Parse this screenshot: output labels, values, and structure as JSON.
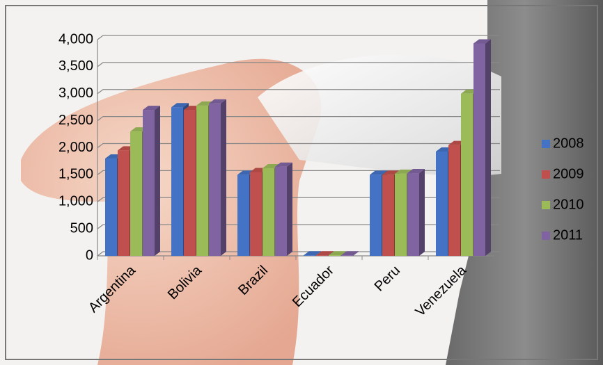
{
  "chart_data": {
    "type": "bar3d",
    "categories": [
      "Argentina",
      "Bolivia",
      "Brazil",
      "Ecuador",
      "Peru",
      "Venezuela"
    ],
    "series": [
      {
        "name": "2008",
        "color": "#4472c4",
        "values": [
          1800,
          2750,
          1500,
          10,
          1500,
          1930
        ]
      },
      {
        "name": "2009",
        "color": "#c0504d",
        "values": [
          1950,
          2700,
          1550,
          10,
          1500,
          2050
        ]
      },
      {
        "name": "2010",
        "color": "#9bbb59",
        "values": [
          2300,
          2780,
          1620,
          10,
          1520,
          3000
        ]
      },
      {
        "name": "2011",
        "color": "#8064a2",
        "values": [
          2700,
          2820,
          1650,
          10,
          1530,
          3930
        ]
      }
    ],
    "ylim": [
      0,
      4000
    ],
    "yticks": [
      0,
      500,
      {
        "value": 1000,
        "label": "1,000"
      },
      {
        "value": 1500,
        "label": "1,500"
      },
      {
        "value": 2000,
        "label": "2,000"
      },
      {
        "value": 2500,
        "label": "2,500"
      },
      {
        "value": 3000,
        "label": "3,000"
      },
      {
        "value": 3500,
        "label": "3,500"
      },
      {
        "value": 4000,
        "label": "4,000"
      }
    ],
    "grid": true,
    "legend": "right"
  }
}
